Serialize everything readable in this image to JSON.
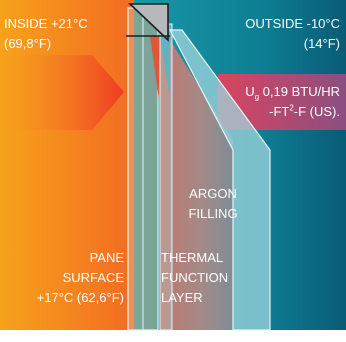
{
  "inside": {
    "label_line1": "INSIDE +21°C",
    "label_line2": "(69,8°F)"
  },
  "outside": {
    "label_line1": "OUTSIDE -10°C",
    "label_line2": "(14°F)"
  },
  "ug": {
    "symbol": "U",
    "subscript": "g",
    "value_text": " 0,19 BTU/HR",
    "line2_pre": "-FT",
    "line2_sup": "2",
    "line2_post": "-F (US)."
  },
  "argon": {
    "line1": "ARGON",
    "line2": "FILLING"
  },
  "pane": {
    "line1": "PANE",
    "line2": "SURFACE",
    "line3": "+17°C (62,6°F)"
  },
  "thermal": {
    "line1": "THERMAL",
    "line2": "FUNCTION",
    "line3": "LAYER"
  },
  "colors": {
    "inside_warm": "#f7941d",
    "inside_deep": "#f26522",
    "outside_cool": "#0e8a9e",
    "outside_deep": "#0b5f7a",
    "ug_band": "#b5527a",
    "thermal_layer": "#e0563a",
    "glass": "#a9d6e0"
  }
}
